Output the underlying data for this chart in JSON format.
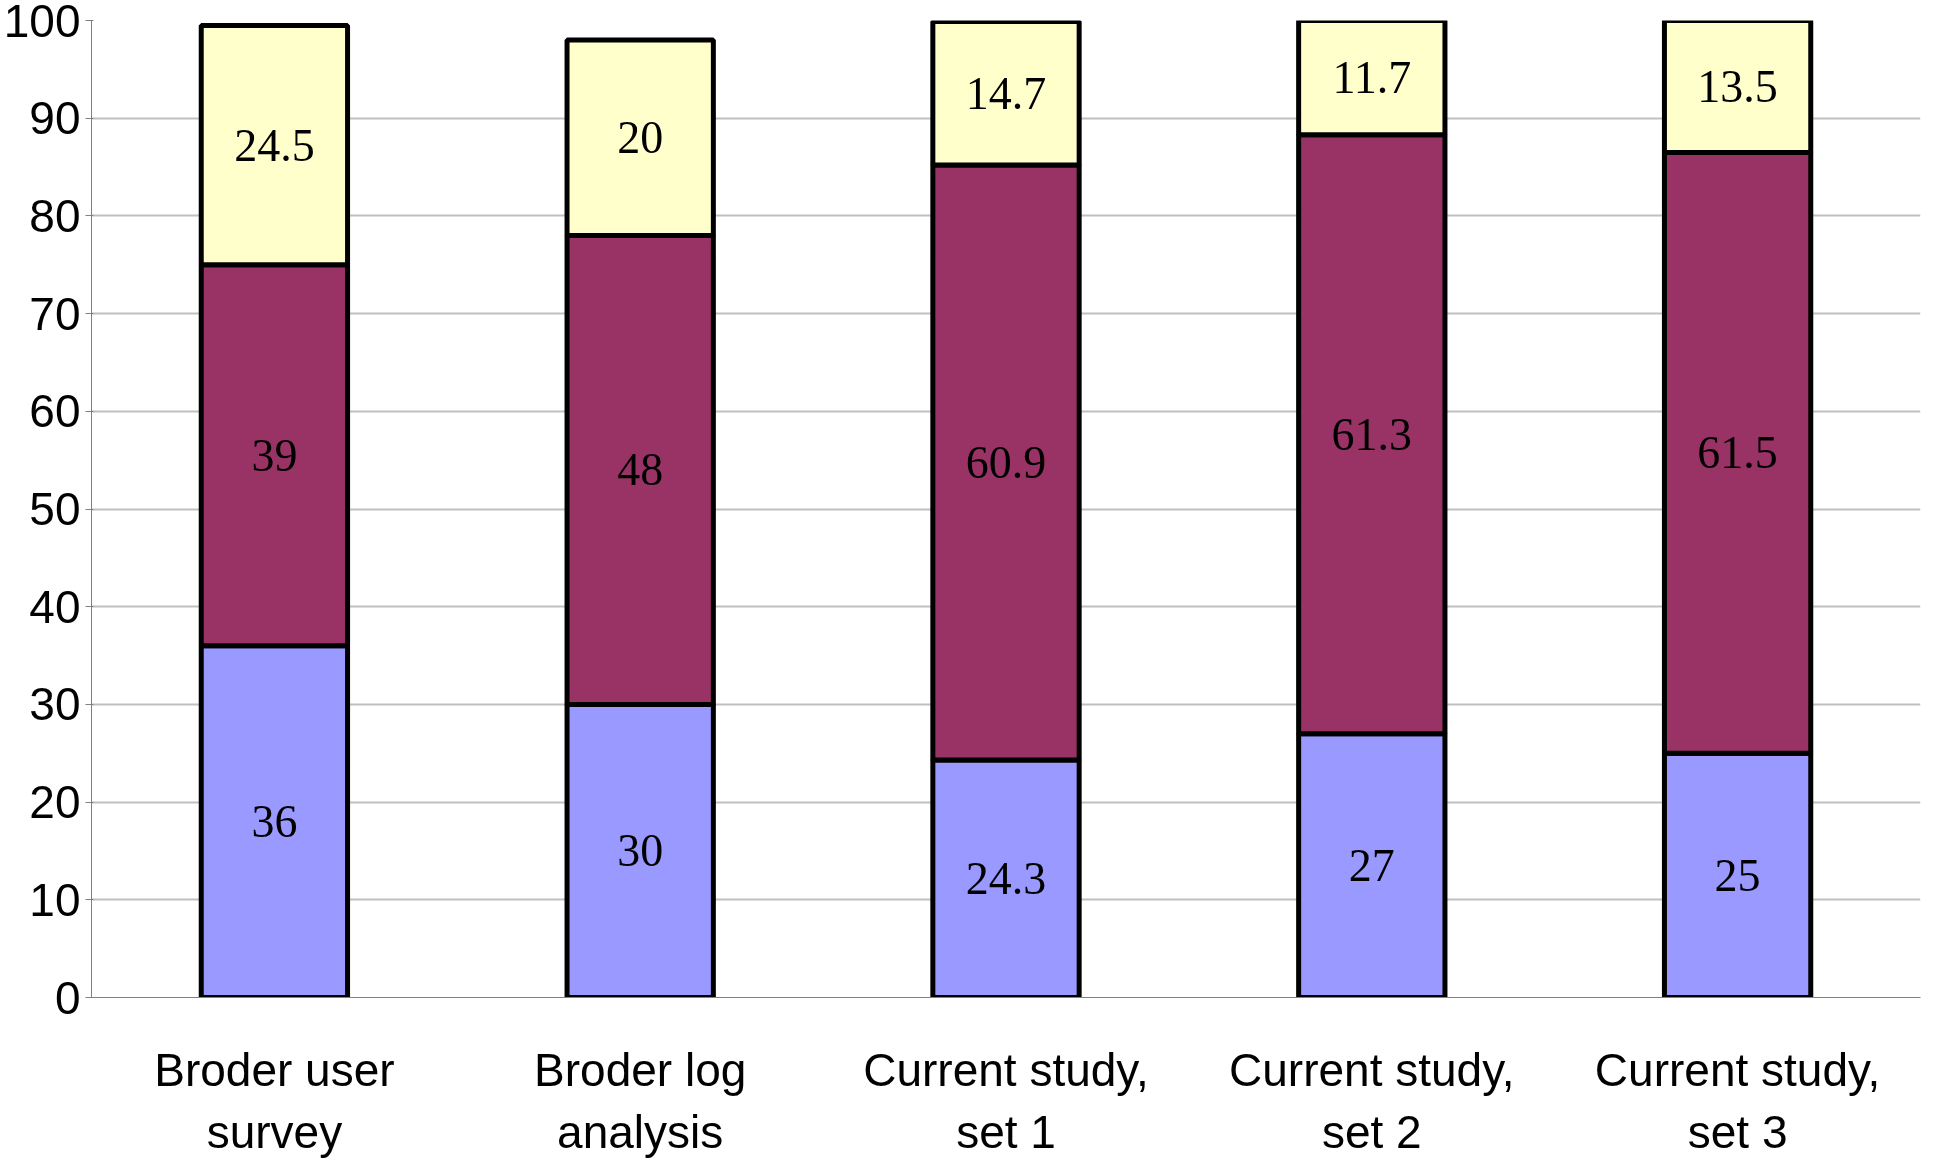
{
  "chart_data": {
    "type": "bar",
    "stacked": true,
    "data_labels": true,
    "categories": [
      "Broder user survey",
      "Broder log analysis",
      "Current study, set 1",
      "Current study, set 2",
      "Current study, set 3"
    ],
    "series": [
      {
        "color": "#9999ff",
        "values": [
          36,
          30,
          24.3,
          27,
          25
        ]
      },
      {
        "color": "#993366",
        "values": [
          39,
          48,
          60.9,
          61.3,
          61.5
        ]
      },
      {
        "color": "#ffffcc",
        "values": [
          24.5,
          20,
          14.7,
          11.7,
          13.5
        ]
      }
    ],
    "ylim": [
      0,
      100
    ],
    "yticks": [
      0,
      10,
      20,
      30,
      40,
      50,
      60,
      70,
      80,
      90,
      100
    ],
    "grid": "y"
  }
}
